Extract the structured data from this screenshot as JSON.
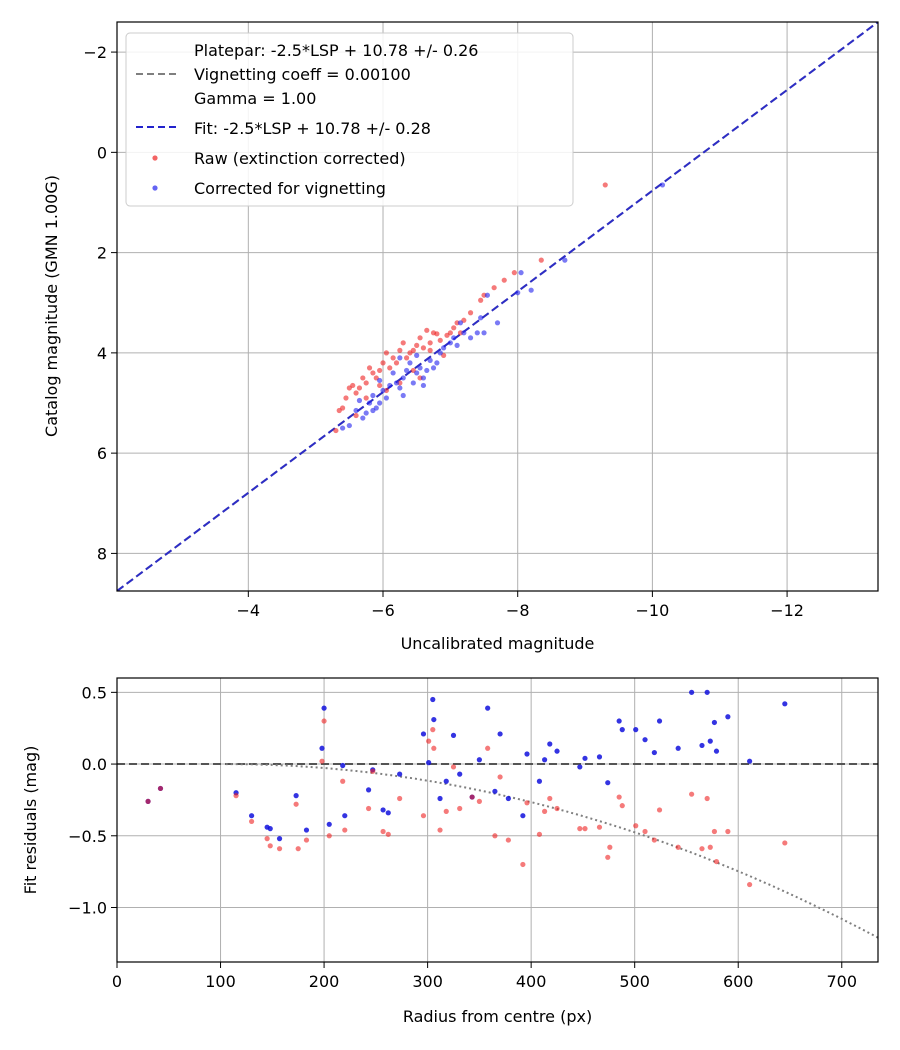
{
  "chart_data": [
    {
      "type": "scatter",
      "name": "calibration",
      "xlabel": "Uncalibrated magnitude",
      "ylabel": "Catalog magnitude (GMN 1.00G)",
      "xlim": [
        -2.05,
        -13.35
      ],
      "ylim": [
        8.75,
        -2.6
      ],
      "xticks": [
        -4,
        -6,
        -8,
        -10,
        -12
      ],
      "xtick_labels": [
        "−4",
        "−6",
        "−8",
        "−10",
        "−12"
      ],
      "yticks": [
        -2,
        0,
        2,
        4,
        6,
        8
      ],
      "ytick_labels": [
        "−2",
        "0",
        "2",
        "4",
        "6",
        "8"
      ],
      "grid": true,
      "legend": {
        "position": "top-left",
        "entries": [
          {
            "label": "Platepar: -2.5*LSP + 10.78 +/- 0.26",
            "marker": "none"
          },
          {
            "label": "Vignetting coeff = 0.00100",
            "marker": "gray-dashed-line"
          },
          {
            "label": "Gamma = 1.00",
            "marker": "none"
          },
          {
            "label": "Fit: -2.5*LSP + 10.78 +/- 0.28",
            "marker": "blue-dashed-line"
          },
          {
            "label": "Raw (extinction corrected)",
            "marker": "red-dot"
          },
          {
            "label": "Corrected for vignetting",
            "marker": "blue-dot"
          }
        ]
      },
      "lines": [
        {
          "name": "Platepar",
          "color": "#7f7f7f",
          "points": [
            [
              -2.05,
              8.75
            ],
            [
              -13.35,
              -2.6
            ]
          ]
        },
        {
          "name": "Fit",
          "color": "#2222cc",
          "points": [
            [
              -2.05,
              8.75
            ],
            [
              -13.35,
              -2.6
            ]
          ]
        }
      ],
      "series": [
        {
          "name": "Raw (extinction corrected)",
          "color": "#ee2222",
          "points": [
            [
              -9.3,
              0.65
            ],
            [
              -8.35,
              2.15
            ],
            [
              -7.95,
              2.4
            ],
            [
              -7.8,
              2.55
            ],
            [
              -7.65,
              2.7
            ],
            [
              -7.5,
              2.85
            ],
            [
              -7.45,
              2.95
            ],
            [
              -7.3,
              3.2
            ],
            [
              -7.2,
              3.35
            ],
            [
              -7.1,
              3.4
            ],
            [
              -7.05,
              3.5
            ],
            [
              -7.0,
              3.6
            ],
            [
              -6.95,
              3.65
            ],
            [
              -6.85,
              3.75
            ],
            [
              -6.8,
              3.62
            ],
            [
              -6.75,
              3.6
            ],
            [
              -6.7,
              3.8
            ],
            [
              -6.65,
              3.55
            ],
            [
              -6.6,
              3.9
            ],
            [
              -6.55,
              3.7
            ],
            [
              -6.5,
              3.85
            ],
            [
              -6.45,
              3.95
            ],
            [
              -6.4,
              4.0
            ],
            [
              -6.35,
              4.1
            ],
            [
              -6.3,
              3.8
            ],
            [
              -6.25,
              3.95
            ],
            [
              -6.2,
              4.2
            ],
            [
              -6.15,
              4.1
            ],
            [
              -6.1,
              4.3
            ],
            [
              -6.05,
              4.0
            ],
            [
              -6.0,
              4.2
            ],
            [
              -5.95,
              4.35
            ],
            [
              -5.9,
              4.5
            ],
            [
              -5.85,
              4.4
            ],
            [
              -5.8,
              4.3
            ],
            [
              -5.75,
              4.6
            ],
            [
              -5.7,
              4.5
            ],
            [
              -5.65,
              4.7
            ],
            [
              -5.6,
              4.8
            ],
            [
              -5.55,
              4.65
            ],
            [
              -5.5,
              4.7
            ],
            [
              -5.45,
              4.9
            ],
            [
              -5.4,
              5.1
            ],
            [
              -5.35,
              5.15
            ],
            [
              -5.6,
              5.25
            ],
            [
              -5.3,
              5.55
            ],
            [
              -6.45,
              4.35
            ],
            [
              -6.05,
              4.75
            ],
            [
              -5.75,
              4.9
            ],
            [
              -6.9,
              4.05
            ],
            [
              -6.55,
              4.5
            ],
            [
              -5.95,
              4.65
            ],
            [
              -6.25,
              4.6
            ],
            [
              -7.15,
              3.6
            ],
            [
              -6.7,
              3.95
            ]
          ]
        },
        {
          "name": "Corrected for vignetting",
          "color": "#2222ee",
          "points": [
            [
              -10.15,
              0.65
            ],
            [
              -8.7,
              2.15
            ],
            [
              -8.2,
              2.75
            ],
            [
              -8.05,
              2.4
            ],
            [
              -8.0,
              2.8
            ],
            [
              -7.7,
              3.4
            ],
            [
              -7.55,
              2.85
            ],
            [
              -7.5,
              3.6
            ],
            [
              -7.45,
              3.3
            ],
            [
              -7.4,
              3.6
            ],
            [
              -7.3,
              3.7
            ],
            [
              -7.2,
              3.6
            ],
            [
              -7.15,
              3.4
            ],
            [
              -7.05,
              3.7
            ],
            [
              -7.0,
              3.8
            ],
            [
              -6.9,
              3.9
            ],
            [
              -6.85,
              4.0
            ],
            [
              -6.8,
              4.2
            ],
            [
              -6.75,
              4.3
            ],
            [
              -6.7,
              4.15
            ],
            [
              -6.65,
              4.35
            ],
            [
              -6.6,
              4.5
            ],
            [
              -6.55,
              4.3
            ],
            [
              -6.5,
              4.4
            ],
            [
              -6.45,
              4.6
            ],
            [
              -6.4,
              4.2
            ],
            [
              -6.35,
              4.35
            ],
            [
              -6.3,
              4.5
            ],
            [
              -6.25,
              4.7
            ],
            [
              -6.2,
              4.6
            ],
            [
              -6.15,
              4.4
            ],
            [
              -6.1,
              4.65
            ],
            [
              -6.05,
              4.9
            ],
            [
              -6.0,
              4.75
            ],
            [
              -5.95,
              5.0
            ],
            [
              -5.9,
              5.1
            ],
            [
              -5.85,
              4.85
            ],
            [
              -5.8,
              5.0
            ],
            [
              -5.75,
              5.2
            ],
            [
              -5.7,
              5.3
            ],
            [
              -5.65,
              4.95
            ],
            [
              -5.6,
              5.15
            ],
            [
              -5.5,
              5.45
            ],
            [
              -5.4,
              5.5
            ],
            [
              -6.3,
              4.85
            ],
            [
              -6.6,
              4.65
            ],
            [
              -5.95,
              4.55
            ],
            [
              -6.5,
              4.05
            ],
            [
              -7.1,
              3.85
            ],
            [
              -6.25,
              4.1
            ],
            [
              -5.85,
              5.15
            ]
          ]
        }
      ]
    },
    {
      "type": "scatter",
      "name": "residuals",
      "xlabel": "Radius from centre (px)",
      "ylabel": "Fit residuals (mag)",
      "xlim": [
        0,
        735
      ],
      "ylim": [
        -1.38,
        0.6
      ],
      "xticks": [
        0,
        100,
        200,
        300,
        400,
        500,
        600,
        700
      ],
      "xtick_labels": [
        "0",
        "100",
        "200",
        "300",
        "400",
        "500",
        "600",
        "700"
      ],
      "yticks": [
        0.5,
        0.0,
        -0.5,
        -1.0
      ],
      "ytick_labels": [
        "0.5",
        "0.0",
        "−0.5",
        "−1.0"
      ],
      "grid": true,
      "lines": [
        {
          "name": "zero",
          "color": "#555555",
          "points": [
            [
              0,
              0
            ],
            [
              735,
              0
            ]
          ]
        }
      ],
      "curve": {
        "name": "vignetting",
        "color": "#7f7f7f",
        "start": 105,
        "end": 735,
        "scale": 3.05e-06
      },
      "series": [
        {
          "name": "Corrected for vignetting",
          "color": "#1111dd",
          "points": [
            [
              30,
              -0.26
            ],
            [
              42,
              -0.17
            ],
            [
              115,
              -0.2
            ],
            [
              130,
              -0.36
            ],
            [
              145,
              -0.44
            ],
            [
              148,
              -0.45
            ],
            [
              157,
              -0.52
            ],
            [
              173,
              -0.22
            ],
            [
              183,
              -0.46
            ],
            [
              198,
              0.11
            ],
            [
              200,
              0.39
            ],
            [
              205,
              -0.42
            ],
            [
              218,
              -0.01
            ],
            [
              220,
              -0.36
            ],
            [
              243,
              -0.18
            ],
            [
              247,
              -0.04
            ],
            [
              257,
              -0.32
            ],
            [
              262,
              -0.34
            ],
            [
              273,
              -0.07
            ],
            [
              296,
              0.21
            ],
            [
              301,
              0.01
            ],
            [
              305,
              0.45
            ],
            [
              306,
              0.31
            ],
            [
              312,
              -0.24
            ],
            [
              318,
              -0.12
            ],
            [
              325,
              0.2
            ],
            [
              331,
              -0.07
            ],
            [
              343,
              -0.23
            ],
            [
              350,
              0.03
            ],
            [
              358,
              0.39
            ],
            [
              365,
              -0.19
            ],
            [
              370,
              0.21
            ],
            [
              378,
              -0.24
            ],
            [
              392,
              -0.36
            ],
            [
              396,
              0.07
            ],
            [
              408,
              -0.12
            ],
            [
              413,
              0.03
            ],
            [
              418,
              0.14
            ],
            [
              425,
              0.09
            ],
            [
              447,
              -0.02
            ],
            [
              452,
              0.04
            ],
            [
              466,
              0.05
            ],
            [
              474,
              -0.13
            ],
            [
              485,
              0.3
            ],
            [
              488,
              0.24
            ],
            [
              501,
              0.24
            ],
            [
              510,
              0.17
            ],
            [
              519,
              0.08
            ],
            [
              524,
              0.3
            ],
            [
              542,
              0.11
            ],
            [
              555,
              0.5
            ],
            [
              565,
              0.13
            ],
            [
              570,
              0.5
            ],
            [
              573,
              0.16
            ],
            [
              577,
              0.29
            ],
            [
              579,
              0.09
            ],
            [
              590,
              0.33
            ],
            [
              611,
              0.02
            ],
            [
              645,
              0.42
            ]
          ]
        },
        {
          "name": "Raw (extinction corrected)",
          "color": "#ee2222",
          "points": [
            [
              30,
              -0.26
            ],
            [
              42,
              -0.17
            ],
            [
              115,
              -0.22
            ],
            [
              130,
              -0.4
            ],
            [
              145,
              -0.52
            ],
            [
              148,
              -0.57
            ],
            [
              157,
              -0.59
            ],
            [
              173,
              -0.28
            ],
            [
              175,
              -0.59
            ],
            [
              183,
              -0.53
            ],
            [
              198,
              0.02
            ],
            [
              200,
              0.3
            ],
            [
              205,
              -0.5
            ],
            [
              218,
              -0.12
            ],
            [
              220,
              -0.46
            ],
            [
              243,
              -0.31
            ],
            [
              247,
              -0.05
            ],
            [
              257,
              -0.47
            ],
            [
              262,
              -0.49
            ],
            [
              273,
              -0.24
            ],
            [
              296,
              -0.36
            ],
            [
              301,
              0.16
            ],
            [
              305,
              0.24
            ],
            [
              306,
              0.11
            ],
            [
              312,
              -0.46
            ],
            [
              318,
              -0.33
            ],
            [
              325,
              -0.02
            ],
            [
              331,
              -0.31
            ],
            [
              343,
              -0.23
            ],
            [
              350,
              -0.26
            ],
            [
              358,
              0.11
            ],
            [
              365,
              -0.5
            ],
            [
              370,
              -0.09
            ],
            [
              378,
              -0.53
            ],
            [
              392,
              -0.7
            ],
            [
              396,
              -0.27
            ],
            [
              408,
              -0.49
            ],
            [
              413,
              -0.33
            ],
            [
              418,
              -0.24
            ],
            [
              425,
              -0.31
            ],
            [
              447,
              -0.45
            ],
            [
              452,
              -0.45
            ],
            [
              466,
              -0.44
            ],
            [
              474,
              -0.65
            ],
            [
              476,
              -0.58
            ],
            [
              485,
              -0.23
            ],
            [
              488,
              -0.29
            ],
            [
              501,
              -0.43
            ],
            [
              510,
              -0.47
            ],
            [
              519,
              -0.53
            ],
            [
              524,
              -0.32
            ],
            [
              542,
              -0.58
            ],
            [
              555,
              -0.21
            ],
            [
              565,
              -0.59
            ],
            [
              570,
              -0.24
            ],
            [
              573,
              -0.58
            ],
            [
              577,
              -0.47
            ],
            [
              579,
              -0.68
            ],
            [
              590,
              -0.47
            ],
            [
              611,
              -0.84
            ],
            [
              645,
              -0.55
            ]
          ]
        }
      ]
    }
  ]
}
